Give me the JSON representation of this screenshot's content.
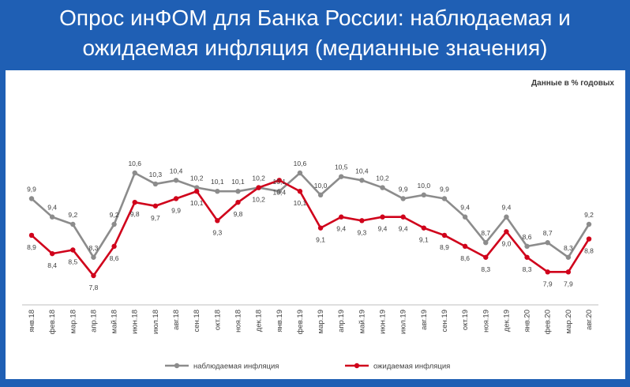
{
  "header": {
    "title_line1": "Опрос инФОМ для Банка России: наблюдаемая и",
    "title_line2": "ожидаемая инфляция (медианные значения)"
  },
  "chart_data": {
    "type": "line",
    "unit_note": "Данные в % годовых",
    "categories": [
      "янв.18",
      "фев.18",
      "мар.18",
      "апр.18",
      "май.18",
      "июн.18",
      "июл.18",
      "авг.18",
      "сен.18",
      "окт.18",
      "ноя.18",
      "дек.18",
      "янв.19",
      "фев.19",
      "мар.19",
      "апр.19",
      "май.19",
      "июн.19",
      "июл.19",
      "авг.19",
      "сен.19",
      "окт.19",
      "ноя.19",
      "дек.19",
      "янв.20",
      "фев.20",
      "мар.20",
      "авг.20"
    ],
    "series": [
      {
        "name": "наблюдаемая инфляция",
        "color": "#8c8c8c",
        "values": [
          9.9,
          9.4,
          9.2,
          8.3,
          9.2,
          10.6,
          10.3,
          10.4,
          10.2,
          10.1,
          10.1,
          10.2,
          10.1,
          10.6,
          10.0,
          10.5,
          10.4,
          10.2,
          9.9,
          10.0,
          9.9,
          9.4,
          8.7,
          9.4,
          8.6,
          8.7,
          8.3,
          9.2
        ],
        "labels": [
          "9,9",
          "9,4",
          "9,2",
          "8,3",
          "9,2",
          "10,6",
          "10,3",
          "10,4",
          "10,2",
          "10,1",
          "10,1",
          "10,2",
          "10,1",
          "10,6",
          "10,0",
          "10,5",
          "10,4",
          "10,2",
          "9,9",
          "10,0",
          "9,9",
          "9,4",
          "8,7",
          "9,4",
          "8,6",
          "8,7",
          "8,3",
          "9,2"
        ]
      },
      {
        "name": "ожидаемая инфляция",
        "color": "#d0021b",
        "values": [
          8.9,
          8.4,
          8.5,
          7.8,
          8.6,
          9.8,
          9.7,
          9.9,
          10.1,
          9.3,
          9.8,
          10.2,
          10.4,
          10.1,
          9.1,
          9.4,
          9.3,
          9.4,
          9.4,
          9.1,
          8.9,
          8.6,
          8.3,
          9.0,
          8.3,
          7.9,
          7.9,
          8.8
        ],
        "labels": [
          "8,9",
          "8,4",
          "8,5",
          "7,8",
          "8,6",
          "9,8",
          "9,7",
          "9,9",
          "10,1",
          "9,3",
          "9,8",
          "10,2",
          "10,4",
          "10,1",
          "9,1",
          "9,4",
          "9,3",
          "9,4",
          "9,4",
          "9,1",
          "8,9",
          "8,6",
          "8,3",
          "9,0",
          "8,3",
          "7,9",
          "7,9",
          "8,8"
        ]
      }
    ],
    "ylim": [
      7.0,
      11.5
    ],
    "grid": false,
    "legend_position": "bottom"
  }
}
